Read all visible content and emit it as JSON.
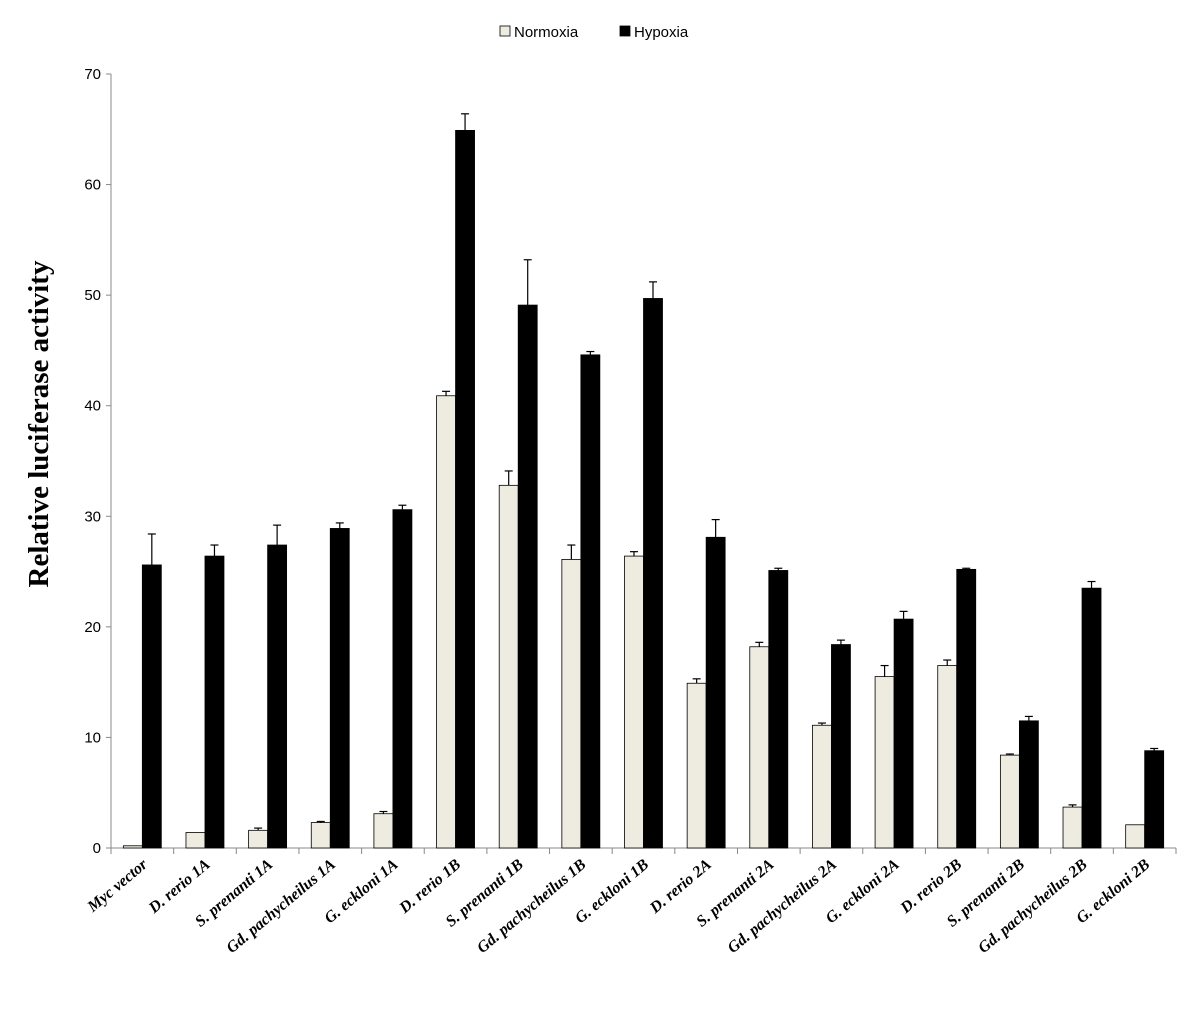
{
  "chart_data": {
    "type": "bar",
    "title": "",
    "xlabel": "",
    "ylabel": "Relative luciferase activity",
    "ylim": [
      0,
      70
    ],
    "yticks": [
      0,
      10,
      20,
      30,
      40,
      50,
      60,
      70
    ],
    "grid": false,
    "legend_position": "top-center",
    "categories": [
      "Myc vector",
      "D. rerio 1A",
      "S. prenanti 1A",
      "Gd. pachycheilus 1A",
      "G. eckloni 1A",
      "D. rerio 1B",
      "S. prenanti 1B",
      "Gd. pachycheilus 1B",
      "G. eckloni 1B",
      "D. rerio 2A",
      "S. prenanti 2A",
      "Gd. pachycheilus 2A",
      "G. eckloni 2A",
      "D. rerio 2B",
      "S. prenanti 2B",
      "Gd. pachycheilus 2B",
      "G. eckloni 2B"
    ],
    "series": [
      {
        "name": "Normoxia",
        "color": "#eeece1",
        "values": [
          0.2,
          1.4,
          1.6,
          2.3,
          3.1,
          40.9,
          32.8,
          26.1,
          26.4,
          14.9,
          18.2,
          11.1,
          15.5,
          16.5,
          8.4,
          3.7,
          2.1
        ],
        "error": [
          0,
          0,
          0.2,
          0.1,
          0.2,
          0.4,
          1.3,
          1.3,
          0.4,
          0.4,
          0.4,
          0.2,
          1.0,
          0.5,
          0.1,
          0.2,
          0
        ]
      },
      {
        "name": "Hypoxia",
        "color": "#000000",
        "values": [
          25.6,
          26.4,
          27.4,
          28.9,
          30.6,
          64.9,
          49.1,
          44.6,
          49.7,
          28.1,
          25.1,
          18.4,
          20.7,
          25.2,
          11.5,
          23.5,
          8.8
        ],
        "error": [
          2.8,
          1.0,
          1.8,
          0.5,
          0.4,
          1.5,
          4.1,
          0.3,
          1.5,
          1.6,
          0.2,
          0.4,
          0.7,
          0.1,
          0.4,
          0.6,
          0.2
        ]
      }
    ]
  }
}
